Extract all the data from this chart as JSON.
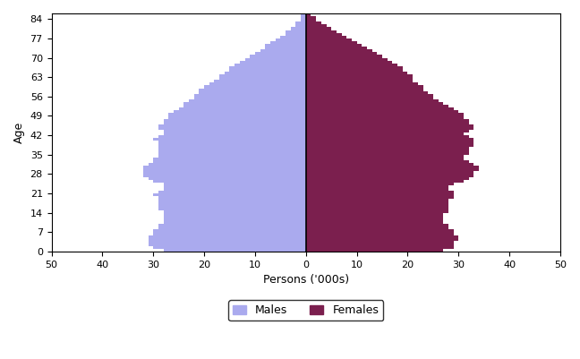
{
  "ages": [
    0,
    1,
    2,
    3,
    4,
    5,
    6,
    7,
    8,
    9,
    10,
    11,
    12,
    13,
    14,
    15,
    16,
    17,
    18,
    19,
    20,
    21,
    22,
    23,
    24,
    25,
    26,
    27,
    28,
    29,
    30,
    31,
    32,
    33,
    34,
    35,
    36,
    37,
    38,
    39,
    40,
    41,
    42,
    43,
    44,
    45,
    46,
    47,
    48,
    49,
    50,
    51,
    52,
    53,
    54,
    55,
    56,
    57,
    58,
    59,
    60,
    61,
    62,
    63,
    64,
    65,
    66,
    67,
    68,
    69,
    70,
    71,
    72,
    73,
    74,
    75,
    76,
    77,
    78,
    79,
    80,
    81,
    82,
    83,
    84,
    85
  ],
  "males": [
    28,
    30,
    31,
    31,
    31,
    31,
    30,
    30,
    29,
    29,
    28,
    28,
    28,
    28,
    28,
    29,
    29,
    29,
    29,
    29,
    30,
    29,
    28,
    28,
    28,
    30,
    31,
    32,
    32,
    32,
    32,
    31,
    30,
    30,
    29,
    29,
    29,
    29,
    29,
    29,
    30,
    29,
    28,
    28,
    29,
    29,
    28,
    28,
    27,
    27,
    26,
    25,
    24,
    24,
    23,
    22,
    22,
    21,
    21,
    20,
    19,
    18,
    17,
    17,
    16,
    15,
    15,
    14,
    13,
    12,
    11,
    10,
    9,
    8,
    8,
    7,
    6,
    5,
    4,
    4,
    3,
    2,
    2,
    1,
    1,
    1
  ],
  "females": [
    27,
    29,
    29,
    29,
    30,
    30,
    29,
    29,
    28,
    28,
    27,
    27,
    27,
    27,
    28,
    28,
    28,
    28,
    28,
    29,
    29,
    29,
    28,
    28,
    29,
    31,
    32,
    33,
    33,
    34,
    34,
    33,
    32,
    31,
    31,
    32,
    32,
    32,
    33,
    33,
    33,
    32,
    31,
    32,
    33,
    33,
    32,
    32,
    31,
    31,
    30,
    29,
    28,
    27,
    26,
    25,
    25,
    24,
    23,
    23,
    22,
    21,
    21,
    21,
    20,
    19,
    19,
    18,
    17,
    16,
    15,
    14,
    13,
    12,
    11,
    10,
    9,
    8,
    7,
    6,
    5,
    4,
    3,
    2,
    2,
    1
  ],
  "male_color": "#aaaaee",
  "female_color": "#7b1f4e",
  "xlabel": "Persons ('000s)",
  "ylabel": "Age",
  "xlim": 50,
  "yticks": [
    0,
    7,
    14,
    21,
    28,
    35,
    42,
    49,
    56,
    63,
    70,
    77,
    84
  ],
  "legend_male": "Males",
  "legend_female": "Females"
}
